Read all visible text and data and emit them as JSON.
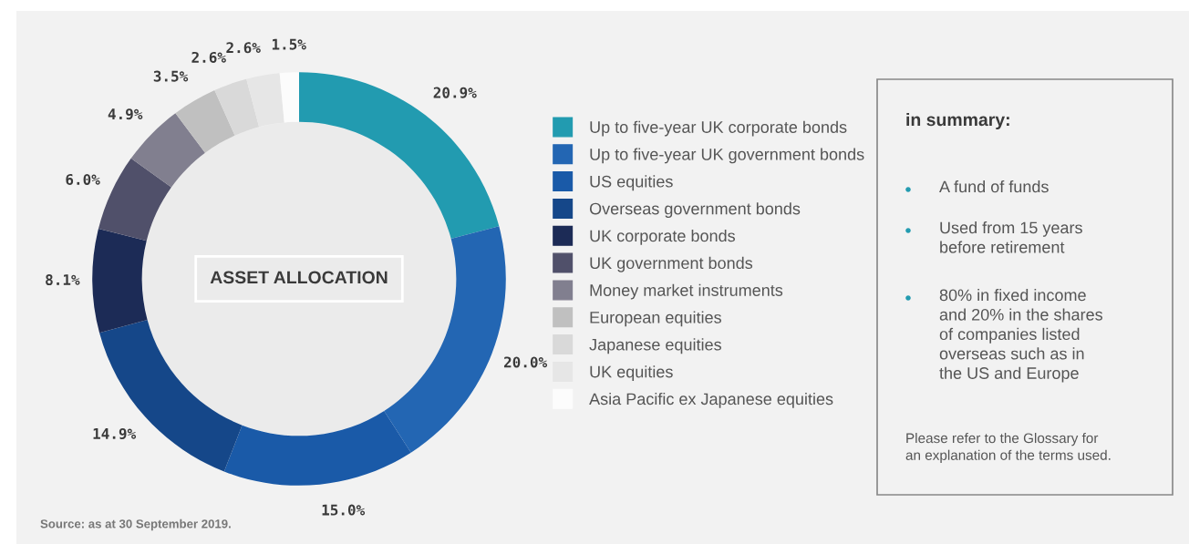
{
  "chart_data": {
    "type": "donut",
    "title": "ASSET ALLOCATION",
    "categories": [
      "Up to five-year UK corporate bonds",
      "Up to five-year UK government bonds",
      "US equities",
      "Overseas government bonds",
      "UK corporate bonds",
      "UK government bonds",
      "Money market instruments",
      "European equities",
      "Japanese equities",
      "UK equities",
      "Asia Pacific ex Japanese equities"
    ],
    "values": [
      20.9,
      20.0,
      15.0,
      14.9,
      8.1,
      6.0,
      4.9,
      3.5,
      2.6,
      2.6,
      1.5
    ],
    "value_labels": [
      "20.9%",
      "20.0%",
      "15.0%",
      "14.9%",
      "8.1%",
      "6.0%",
      "4.9%",
      "3.5%",
      "2.6%",
      "2.6%",
      "1.5%"
    ],
    "colors": [
      "#229bb0",
      "#2366b3",
      "#1a5aa8",
      "#154789",
      "#1c2b56",
      "#50506a",
      "#817f8f",
      "#c0c0c0",
      "#d9d9d9",
      "#e6e6e6",
      "#fcfcfc"
    ],
    "legend": "right",
    "annotations": [
      "in summary:",
      "A fund of funds",
      "Used from 15 years\nbefore retirement",
      "80% in fixed income\nand 20% in the shares\nof companies listed\noverseas such as in\nthe US and Europe",
      "Please refer to the Glossary for\nan explanation of the terms used.",
      "Source: as at 30 September 2019."
    ]
  }
}
